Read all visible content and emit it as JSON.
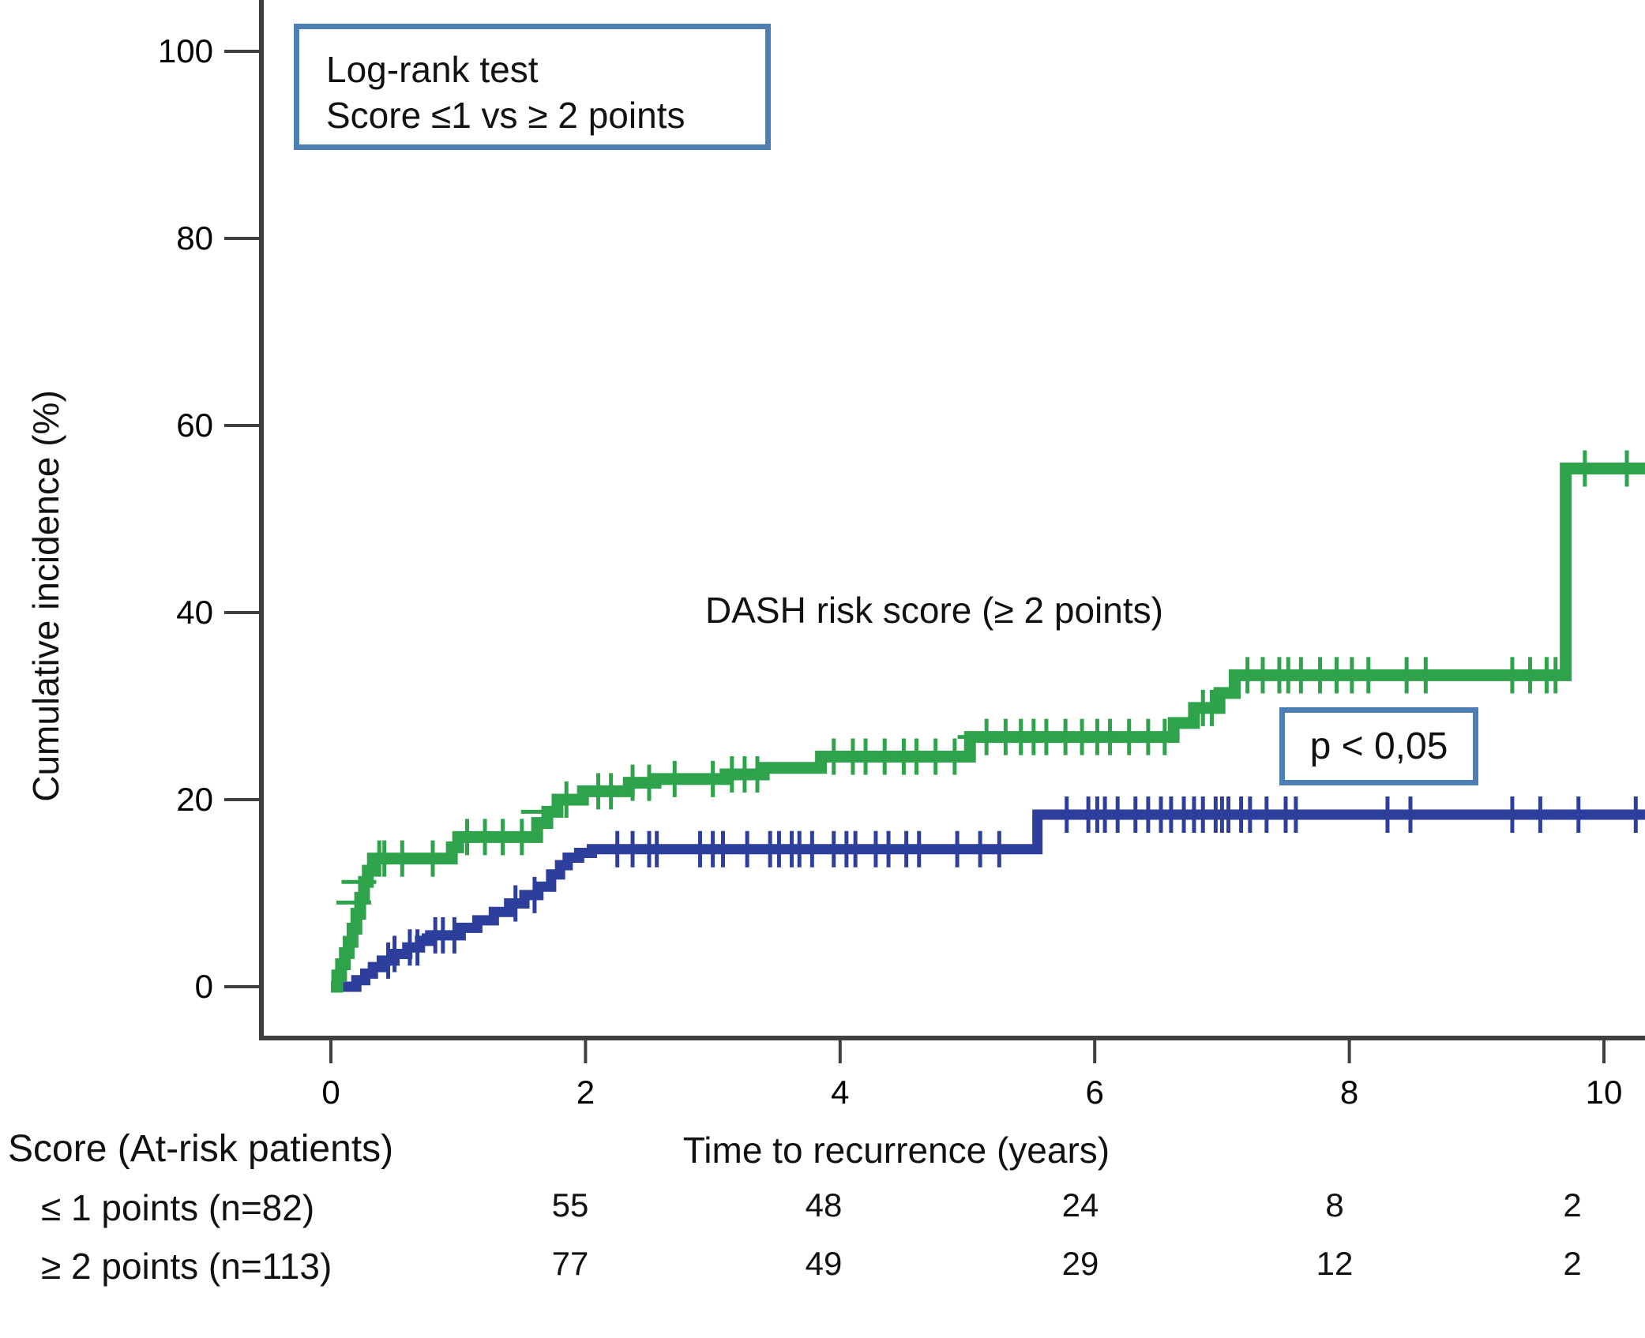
{
  "figure": {
    "y_axis_title": "Cumulative incidence (%)",
    "legend_box": {
      "line1": "Log-rank test",
      "line2": "Score ≤1 vs ≥ 2 points"
    },
    "green_curve_label": "DASH risk score (≥ 2 points)",
    "p_value_box": "p < 0,05",
    "at_risk": {
      "header": "Score (At-risk patients)",
      "x_axis_title": "Time to recurrence (years)",
      "rows": [
        {
          "label": "≤ 1 points (n=82)",
          "counts": [
            "55",
            "48",
            "24",
            "8",
            "2"
          ]
        },
        {
          "label": "≥ 2 points (n=113)",
          "counts": [
            "77",
            "49",
            "29",
            "12",
            "2"
          ]
        }
      ]
    }
  },
  "colors": {
    "green": "#2fa34b",
    "blue": "#2d3e9d",
    "axis": "#3f3f3f",
    "box_border": "#4d7fb5"
  },
  "chart_data": {
    "type": "line",
    "subtype": "kaplan_meier_cumulative_incidence_steps",
    "title": "",
    "xlabel": "Time to recurrence (years)",
    "ylabel": "Cumulative incidence (%)",
    "x_ticks": [
      0,
      2,
      4,
      6,
      8,
      10
    ],
    "y_ticks": [
      0,
      20,
      40,
      60,
      80,
      100
    ],
    "xlim": [
      -0.55,
      10.34
    ],
    "ylim": [
      0,
      105
    ],
    "grid": false,
    "legend_position": "none",
    "annotations": [
      "Log-rank test",
      "Score ≤1 vs ≥ 2 points",
      "DASH risk score (≥ 2 points)",
      "p < 0,05"
    ],
    "at_risk_times": [
      2,
      4,
      6,
      8,
      10
    ],
    "series": [
      {
        "name": "DASH risk score ≤ 1 points (n=82)",
        "color_key": "blue",
        "end_t": 10.34,
        "steps": [
          [
            0.08,
            0
          ],
          [
            0.2,
            0.7
          ],
          [
            0.27,
            1.4
          ],
          [
            0.33,
            2.1
          ],
          [
            0.4,
            2.8
          ],
          [
            0.5,
            3.5
          ],
          [
            0.6,
            4.2
          ],
          [
            0.7,
            4.9
          ],
          [
            0.78,
            5.5
          ],
          [
            1.02,
            6.3
          ],
          [
            1.15,
            7.1
          ],
          [
            1.28,
            8.0
          ],
          [
            1.4,
            8.9
          ],
          [
            1.52,
            9.8
          ],
          [
            1.63,
            10.7
          ],
          [
            1.73,
            12.0
          ],
          [
            1.8,
            13.0
          ],
          [
            1.86,
            13.8
          ],
          [
            1.95,
            14.3
          ],
          [
            2.05,
            14.7
          ],
          [
            5.55,
            18.4
          ]
        ],
        "censors": [
          0.45,
          0.5,
          0.62,
          0.68,
          0.82,
          0.88,
          0.97,
          1.45,
          1.6,
          2.25,
          2.37,
          2.5,
          2.56,
          2.9,
          3.0,
          3.08,
          3.27,
          3.45,
          3.52,
          3.62,
          3.68,
          3.78,
          3.95,
          4.05,
          4.12,
          4.28,
          4.38,
          4.52,
          4.62,
          4.92,
          5.1,
          5.25,
          5.78,
          5.95,
          6.02,
          6.08,
          6.18,
          6.32,
          6.42,
          6.52,
          6.6,
          6.7,
          6.78,
          6.85,
          6.95,
          7.0,
          7.05,
          7.15,
          7.22,
          7.35,
          7.5,
          7.58,
          8.3,
          8.48,
          9.28,
          9.5,
          9.8,
          10.25
        ],
        "hcensors": [
          [
            0.85,
            5.5
          ],
          [
            2.3,
            14.7
          ]
        ]
      },
      {
        "name": "DASH risk score ≥ 2 points (n=113)",
        "color_key": "green",
        "end_t": 10.34,
        "steps": [
          [
            0.0,
            0
          ],
          [
            0.05,
            1.2
          ],
          [
            0.08,
            2.4
          ],
          [
            0.11,
            3.6
          ],
          [
            0.14,
            4.8
          ],
          [
            0.17,
            6.2
          ],
          [
            0.2,
            7.8
          ],
          [
            0.23,
            9.5
          ],
          [
            0.26,
            11.2
          ],
          [
            0.29,
            12.4
          ],
          [
            0.33,
            13.7
          ],
          [
            0.95,
            14.9
          ],
          [
            1.0,
            16.0
          ],
          [
            1.62,
            17.5
          ],
          [
            1.7,
            18.7
          ],
          [
            1.78,
            20.0
          ],
          [
            1.98,
            20.9
          ],
          [
            2.34,
            21.8
          ],
          [
            2.55,
            22.2
          ],
          [
            3.1,
            22.7
          ],
          [
            3.4,
            23.4
          ],
          [
            3.85,
            24.6
          ],
          [
            5.02,
            26.7
          ],
          [
            6.62,
            28.2
          ],
          [
            6.78,
            29.8
          ],
          [
            6.98,
            31.4
          ],
          [
            7.1,
            33.3
          ],
          [
            9.7,
            55.4
          ]
        ],
        "censors": [
          0.38,
          0.42,
          0.56,
          0.8,
          1.07,
          1.21,
          1.35,
          1.5,
          1.85,
          2.1,
          2.2,
          2.37,
          2.5,
          2.7,
          3.0,
          3.15,
          3.25,
          3.35,
          3.95,
          4.1,
          4.2,
          4.35,
          4.5,
          4.6,
          4.75,
          4.9,
          5.15,
          5.3,
          5.42,
          5.52,
          5.62,
          5.77,
          5.9,
          6.02,
          6.12,
          6.27,
          6.42,
          6.55,
          6.85,
          6.92,
          7.2,
          7.32,
          7.45,
          7.52,
          7.62,
          7.77,
          7.9,
          8.02,
          8.15,
          8.45,
          8.6,
          9.28,
          9.42,
          9.55,
          9.62,
          9.85,
          10.18
        ],
        "hcensors": [
          [
            0.18,
            9.0
          ],
          [
            0.22,
            11.2
          ],
          [
            1.63,
            18.7
          ],
          [
            5.06,
            26.7
          ]
        ]
      }
    ]
  }
}
